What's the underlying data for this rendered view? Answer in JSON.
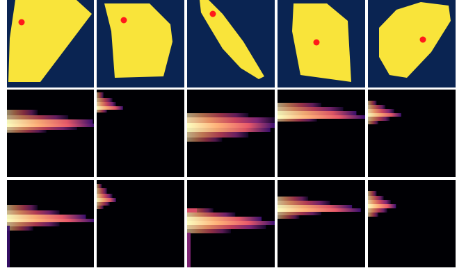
{
  "figure": {
    "rows": [
      {
        "kind": "shape",
        "background": "#0a2452",
        "fill": "#f9e43a",
        "marker": "#ff1a1a"
      },
      {
        "kind": "spectrum",
        "background": "#000004"
      },
      {
        "kind": "spectrum",
        "background": "#000004"
      }
    ],
    "columns": 5,
    "colormap": [
      "#000004",
      "#3b0f70",
      "#8c2981",
      "#de4968",
      "#fe9f6d",
      "#fcfdbf"
    ]
  }
}
